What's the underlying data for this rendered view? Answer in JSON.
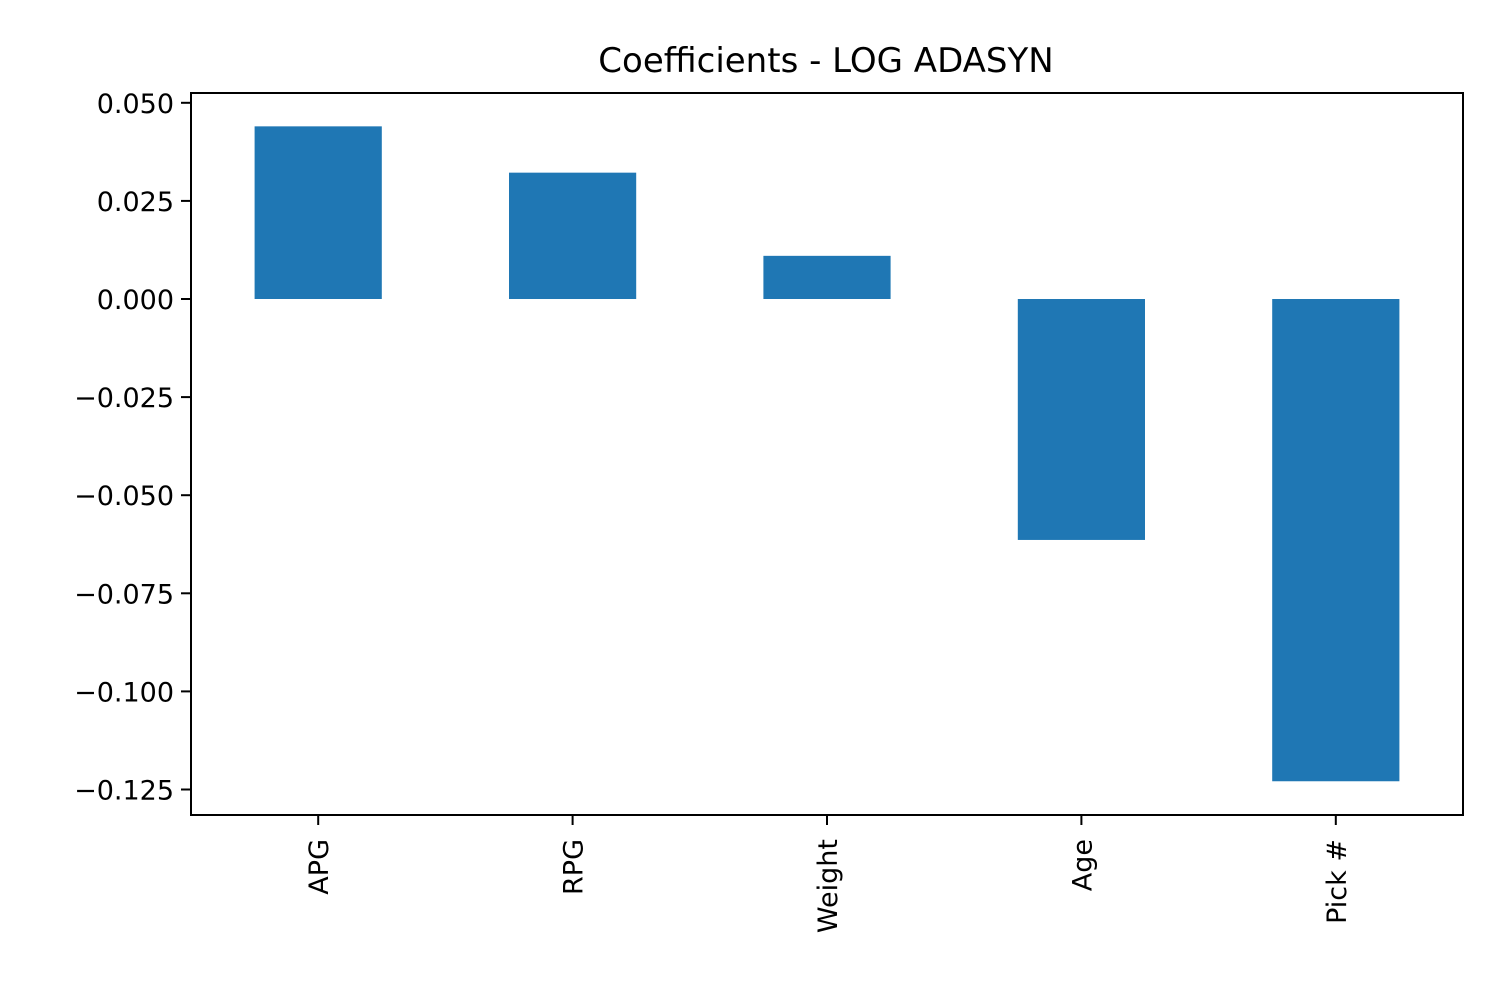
{
  "chart_data": {
    "type": "bar",
    "title": "Coefficients - LOG ADASYN",
    "xlabel": "",
    "ylabel": "",
    "categories": [
      "APG",
      "RPG",
      "Weight",
      "Age",
      "Pick #"
    ],
    "values": [
      0.044,
      0.0322,
      0.011,
      -0.0614,
      -0.1229
    ],
    "ylim": [
      -0.1315,
      0.0525
    ],
    "yticks": [
      0.05,
      0.025,
      0.0,
      -0.025,
      -0.05,
      -0.075,
      -0.1,
      -0.125
    ],
    "ytick_labels": [
      "0.050",
      "0.025",
      "0.000",
      "−0.025",
      "−0.050",
      "−0.075",
      "−0.100",
      "−0.125"
    ],
    "bar_color": "#1f77b4",
    "grid": false,
    "legend": "none"
  }
}
